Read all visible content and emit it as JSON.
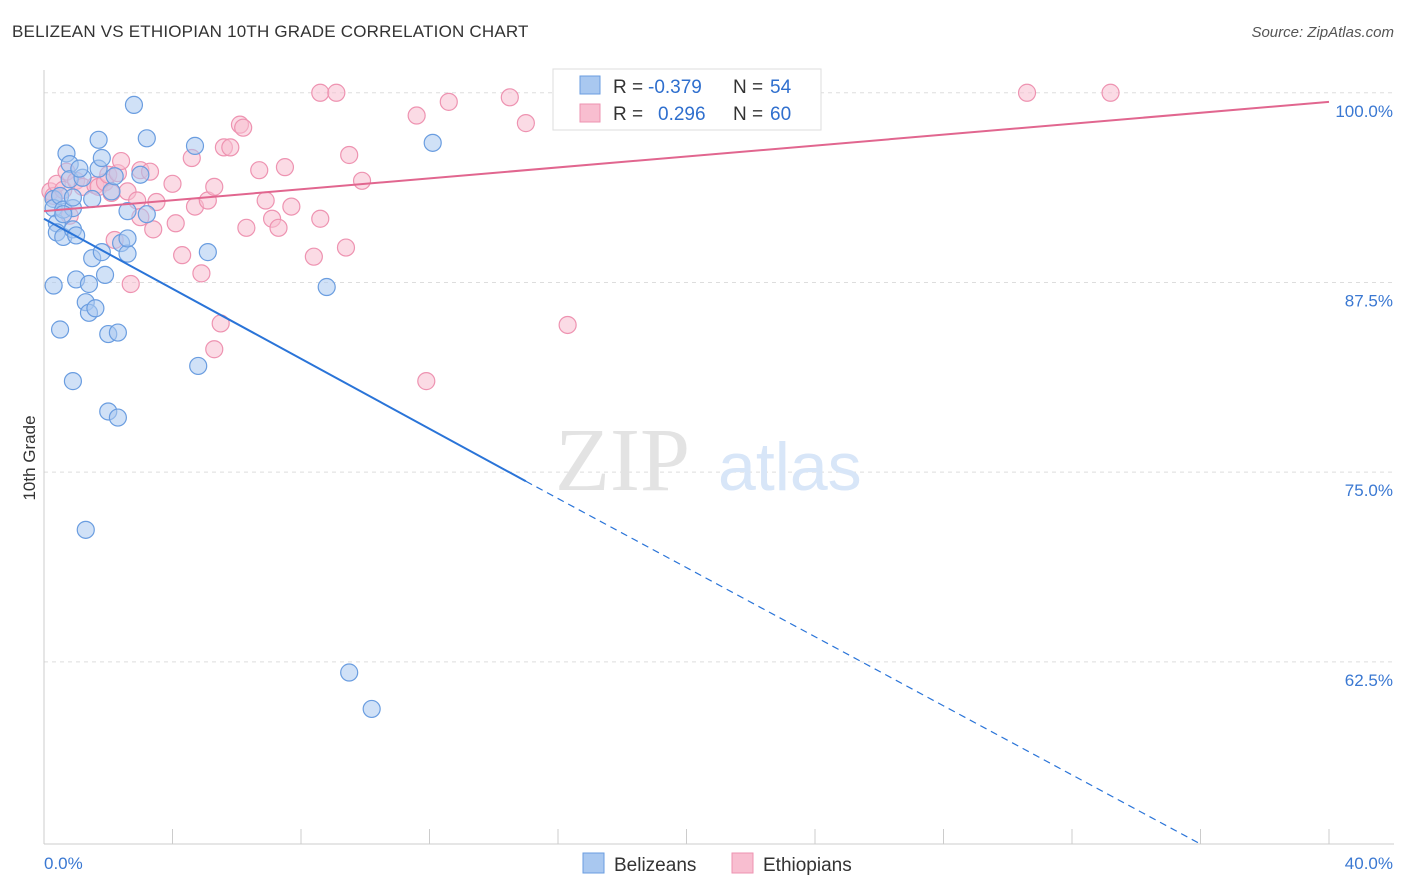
{
  "title": "BELIZEAN VS ETHIOPIAN 10TH GRADE CORRELATION CHART",
  "source": "Source: ZipAtlas.com",
  "watermark": {
    "zip": "ZIP",
    "atlas": "atlas"
  },
  "colors": {
    "blue_fill": "#a9c8f0",
    "blue_stroke": "#6a9de0",
    "blue_line": "#2a74d8",
    "pink_fill": "#f8bed0",
    "pink_stroke": "#ee93b1",
    "pink_line": "#e1668f",
    "grid": "#dddddd",
    "axis_label": "#3a78d2"
  },
  "stats_box": [
    {
      "series": "Belizeans",
      "r_label": "R =",
      "r_value": "-0.379",
      "n_label": "N =",
      "n_value": "54"
    },
    {
      "series": "Ethiopians",
      "r_label": "R =",
      "r_value": "0.296",
      "n_label": "N =",
      "n_value": "60"
    }
  ],
  "chart_data": {
    "type": "scatter",
    "title": "BELIZEAN VS ETHIOPIAN 10TH GRADE CORRELATION CHART",
    "xlabel": "",
    "ylabel": "10th Grade",
    "xlim": [
      0,
      40
    ],
    "ylim": [
      50.5,
      101.5
    ],
    "x_tick_labels": [
      "0.0%",
      "40.0%"
    ],
    "y_ticks": [
      62.5,
      75.0,
      87.5,
      100.0
    ],
    "y_tick_labels": [
      "62.5%",
      "75.0%",
      "87.5%",
      "100.0%"
    ],
    "grid": true,
    "legend_position": "bottom-center",
    "series": [
      {
        "name": "Belizeans",
        "color": "#a9c8f0",
        "trend": {
          "x": [
            0,
            15
          ],
          "y": [
            91.7,
            74.4
          ],
          "dashed_to": [
            36,
            50.5
          ]
        },
        "points": [
          [
            0.3,
            93.0
          ],
          [
            0.3,
            92.4
          ],
          [
            0.4,
            91.4
          ],
          [
            0.4,
            90.8
          ],
          [
            0.5,
            93.2
          ],
          [
            0.6,
            90.5
          ],
          [
            0.6,
            92.3
          ],
          [
            0.7,
            96.0
          ],
          [
            0.8,
            95.3
          ],
          [
            0.8,
            94.3
          ],
          [
            0.9,
            92.4
          ],
          [
            0.9,
            93.1
          ],
          [
            0.9,
            91.0
          ],
          [
            1.0,
            90.6
          ],
          [
            1.0,
            87.7
          ],
          [
            1.2,
            94.4
          ],
          [
            1.3,
            86.2
          ],
          [
            1.4,
            87.4
          ],
          [
            1.4,
            85.5
          ],
          [
            1.5,
            89.1
          ],
          [
            1.5,
            93.0
          ],
          [
            1.6,
            85.8
          ],
          [
            1.7,
            95.0
          ],
          [
            1.7,
            96.9
          ],
          [
            1.8,
            89.5
          ],
          [
            1.8,
            95.7
          ],
          [
            1.9,
            88.0
          ],
          [
            2.0,
            84.1
          ],
          [
            2.0,
            79.0
          ],
          [
            2.1,
            93.5
          ],
          [
            2.2,
            94.5
          ],
          [
            2.3,
            78.6
          ],
          [
            2.3,
            84.2
          ],
          [
            2.4,
            90.1
          ],
          [
            2.6,
            92.2
          ],
          [
            2.6,
            89.4
          ],
          [
            2.6,
            90.4
          ],
          [
            2.8,
            99.2
          ],
          [
            3.0,
            94.6
          ],
          [
            3.2,
            97.0
          ],
          [
            3.2,
            92.0
          ],
          [
            4.7,
            96.5
          ],
          [
            4.8,
            82.0
          ],
          [
            5.1,
            89.5
          ],
          [
            8.8,
            87.2
          ],
          [
            9.5,
            61.8
          ],
          [
            10.2,
            59.4
          ],
          [
            12.1,
            96.7
          ],
          [
            0.3,
            87.3
          ],
          [
            0.5,
            84.4
          ],
          [
            0.9,
            81.0
          ],
          [
            1.3,
            71.2
          ],
          [
            0.6,
            92.0
          ],
          [
            1.1,
            95.0
          ]
        ]
      },
      {
        "name": "Ethiopians",
        "color": "#f8bed0",
        "trend": {
          "x": [
            0,
            40
          ],
          "y": [
            92.2,
            99.4
          ]
        },
        "points": [
          [
            0.2,
            93.5
          ],
          [
            0.3,
            93.2
          ],
          [
            0.4,
            94.0
          ],
          [
            0.6,
            93.6
          ],
          [
            0.7,
            94.8
          ],
          [
            0.8,
            91.9
          ],
          [
            1.0,
            94.2
          ],
          [
            1.2,
            93.8
          ],
          [
            1.6,
            93.9
          ],
          [
            1.7,
            93.8
          ],
          [
            1.9,
            94.1
          ],
          [
            2.0,
            94.6
          ],
          [
            2.1,
            93.4
          ],
          [
            2.2,
            90.3
          ],
          [
            2.3,
            94.7
          ],
          [
            2.4,
            95.5
          ],
          [
            2.6,
            93.5
          ],
          [
            2.7,
            87.4
          ],
          [
            2.9,
            92.9
          ],
          [
            3.0,
            94.9
          ],
          [
            3.0,
            91.8
          ],
          [
            3.3,
            94.8
          ],
          [
            3.4,
            91.0
          ],
          [
            3.5,
            92.8
          ],
          [
            4.0,
            94.0
          ],
          [
            4.1,
            91.4
          ],
          [
            4.3,
            89.3
          ],
          [
            4.6,
            95.7
          ],
          [
            4.7,
            92.5
          ],
          [
            4.9,
            88.1
          ],
          [
            5.1,
            92.9
          ],
          [
            5.3,
            93.8
          ],
          [
            5.3,
            83.1
          ],
          [
            5.5,
            84.8
          ],
          [
            5.6,
            96.4
          ],
          [
            5.8,
            96.4
          ],
          [
            6.1,
            97.9
          ],
          [
            6.2,
            97.7
          ],
          [
            6.3,
            91.1
          ],
          [
            6.7,
            94.9
          ],
          [
            6.9,
            92.9
          ],
          [
            7.1,
            91.7
          ],
          [
            7.3,
            91.1
          ],
          [
            7.5,
            95.1
          ],
          [
            7.7,
            92.5
          ],
          [
            8.4,
            89.2
          ],
          [
            8.6,
            91.7
          ],
          [
            9.4,
            89.8
          ],
          [
            9.5,
            95.9
          ],
          [
            9.9,
            94.2
          ],
          [
            8.6,
            100.0
          ],
          [
            9.1,
            100.0
          ],
          [
            11.6,
            98.5
          ],
          [
            12.6,
            99.4
          ],
          [
            14.5,
            99.7
          ],
          [
            15.0,
            98.0
          ],
          [
            16.3,
            84.7
          ],
          [
            11.9,
            81.0
          ],
          [
            30.6,
            100.0
          ],
          [
            33.2,
            100.0
          ]
        ]
      }
    ]
  }
}
